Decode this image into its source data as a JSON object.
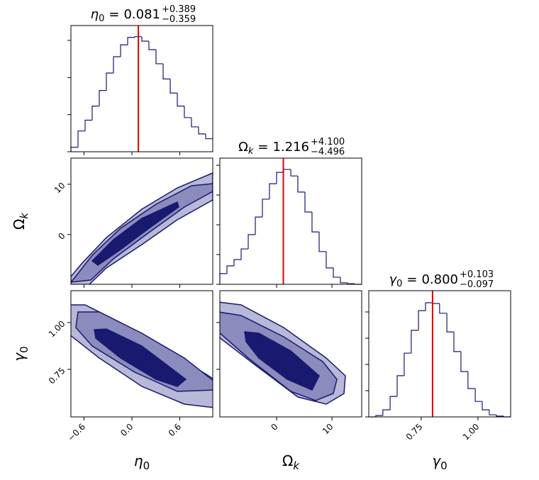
{
  "chart_data": {
    "type": "corner",
    "hist_color": "#191970",
    "median_color": "#e00000",
    "parameters": [
      {
        "symbol": "η",
        "sub": "0",
        "xlim": [
          -0.764,
          1.013
        ],
        "xticks": [
          {
            "value": -0.6,
            "label": "−0.6"
          },
          {
            "value": 0,
            "label": "0.0"
          },
          0.6
        ],
        "title": {
          "relation": "=",
          "median": 0.081,
          "upper": "+0.389",
          "lower": "−0.359"
        },
        "hist": {
          "bins": [
            -0.764,
            -0.675,
            -0.586,
            -0.498,
            -0.409,
            -0.32,
            -0.231,
            -0.142,
            -0.053,
            0.035,
            0.124,
            0.213,
            0.302,
            0.391,
            0.48,
            0.569,
            0.657,
            0.746,
            0.835,
            0.924,
            1.013
          ],
          "values": [
            0.12,
            0.56,
            0.85,
            1.23,
            1.65,
            2.12,
            2.56,
            2.88,
            3.08,
            3.1,
            2.98,
            2.75,
            2.37,
            1.96,
            1.58,
            1.23,
            0.92,
            0.67,
            0.48,
            0.35
          ],
          "ylim": [
            0,
            3.4
          ],
          "yticks": [
            0,
            1,
            2,
            3
          ]
        }
      },
      {
        "symbol": "Ω",
        "sub": "k",
        "xlim": [
          -10.26,
          15.38
        ],
        "xticks": [
          0,
          10
        ],
        "ylim": [
          -9.9,
          15.2
        ],
        "yticks": [
          0,
          10
        ],
        "title": {
          "relation": "=",
          "median": 1.216,
          "upper": "+4.100",
          "lower": "−4.496"
        },
        "hist": {
          "bins": [
            -10.26,
            -8.98,
            -7.7,
            -6.41,
            -5.13,
            -3.85,
            -2.57,
            -1.29,
            -0.01,
            1.28,
            2.56,
            3.84,
            5.12,
            6.4,
            7.69,
            8.97,
            10.25,
            11.53,
            12.81,
            14.1,
            15.38
          ],
          "values": [
            0.36,
            0.62,
            0.83,
            1.19,
            1.67,
            2.26,
            2.86,
            3.38,
            3.76,
            3.86,
            3.64,
            3.1,
            2.43,
            1.76,
            1.1,
            0.55,
            0.24,
            0.05,
            0.02,
            0
          ],
          "ylim": [
            0,
            4.24
          ],
          "yticks": [
            0,
            1,
            2,
            3,
            4
          ]
        }
      },
      {
        "symbol": "γ",
        "sub": "0",
        "xlim": [
          0.519,
          1.144
        ],
        "xticks": [
          0.75,
          {
            "value": 1,
            "label": "1.00"
          }
        ],
        "ylim": [
          0.496,
          1.17
        ],
        "yticks": [
          0.75,
          {
            "value": 1,
            "label": "1.00"
          }
        ],
        "title": {
          "relation": "=",
          "median": {
            "value": 0.8,
            "label": "0.800"
          },
          "upper": "+0.103",
          "lower": "−0.097"
        },
        "hist": {
          "bins": [
            0.519,
            0.55,
            0.581,
            0.613,
            0.644,
            0.675,
            0.706,
            0.738,
            0.769,
            0.8,
            0.831,
            0.863,
            0.894,
            0.925,
            0.956,
            0.988,
            1.019,
            1.05,
            1.081,
            1.113,
            1.144
          ],
          "values": [
            0,
            0.05,
            0.27,
            0.78,
            1.57,
            2.43,
            3.3,
            4.05,
            4.35,
            4.32,
            3.95,
            3.24,
            2.49,
            1.73,
            1.08,
            0.59,
            0.27,
            0.08,
            0.03,
            0
          ],
          "ylim": [
            0,
            4.81
          ],
          "yticks": [
            0,
            1,
            2,
            3,
            4
          ]
        }
      }
    ]
  }
}
